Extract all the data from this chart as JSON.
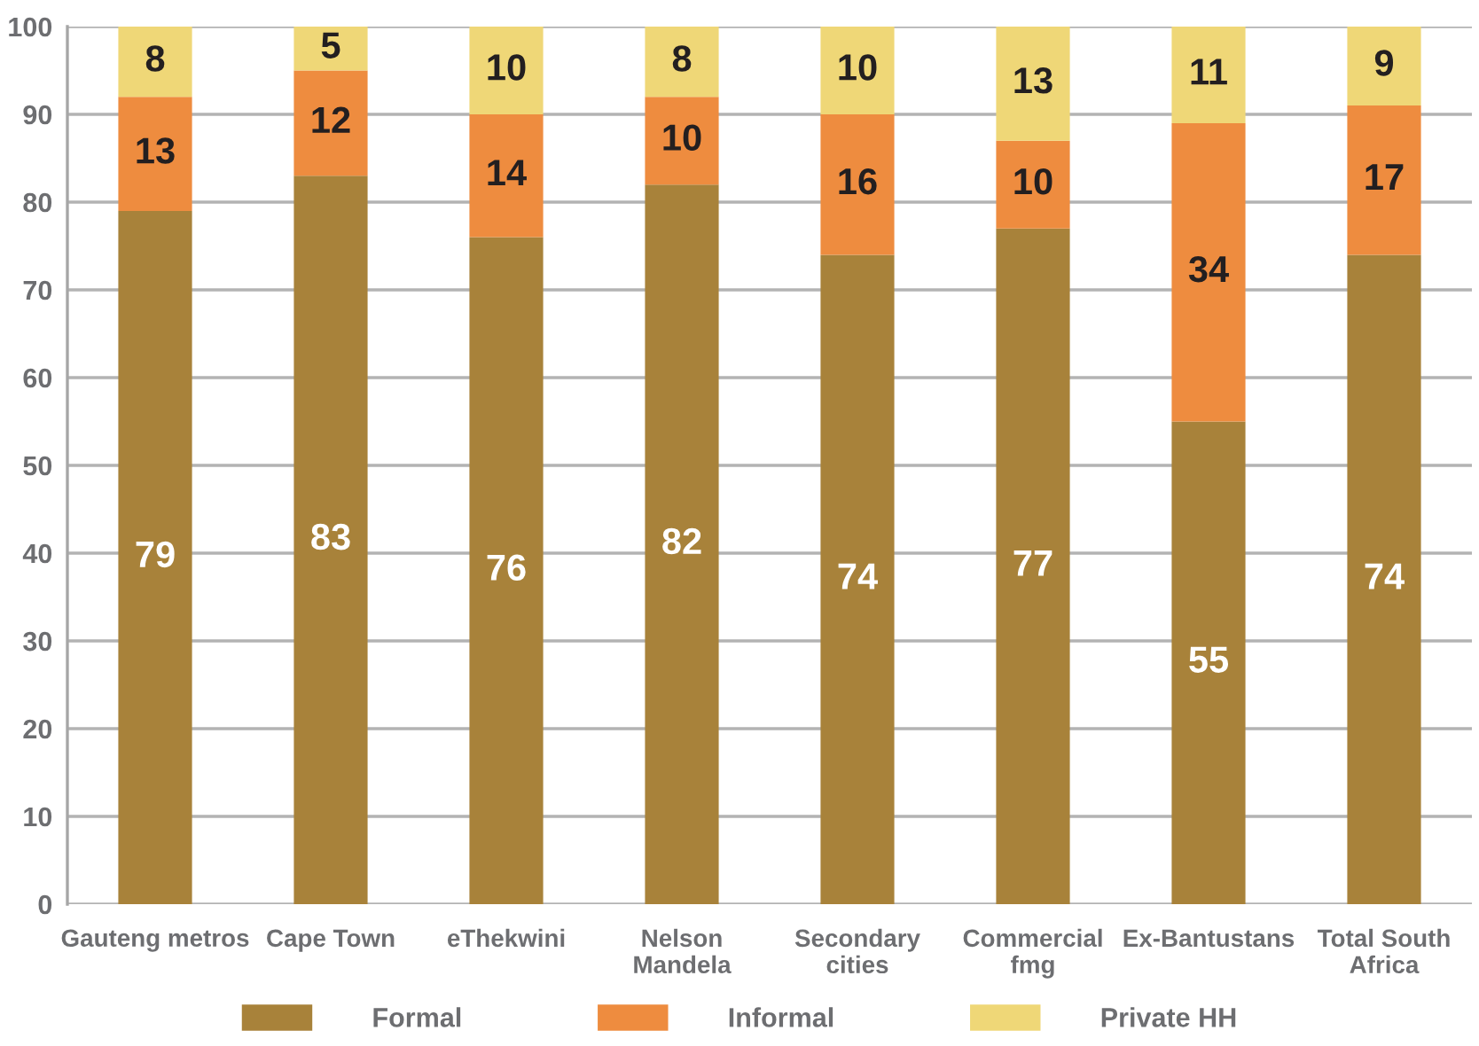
{
  "chart_data": {
    "type": "bar",
    "stacked": true,
    "categories": [
      "Gauteng metros",
      "Cape Town",
      "eThekwini",
      "Nelson\nMandela",
      "Secondary\ncities",
      "Commercial\nfmg",
      "Ex-Bantustans",
      "Total South\nAfrica"
    ],
    "series": [
      {
        "name": "Formal",
        "color": "#a8823a",
        "values": [
          79,
          83,
          76,
          82,
          74,
          77,
          55,
          74
        ]
      },
      {
        "name": "Informal",
        "color": "#ee8c3f",
        "values": [
          13,
          12,
          14,
          10,
          16,
          10,
          34,
          17
        ]
      },
      {
        "name": "Private HH",
        "color": "#efd777",
        "values": [
          8,
          5,
          10,
          8,
          10,
          13,
          11,
          9
        ]
      }
    ],
    "ylim": [
      0,
      100
    ],
    "yticks": [
      0,
      10,
      20,
      30,
      40,
      50,
      60,
      70,
      80,
      90,
      100
    ],
    "grid": "y",
    "legend": "bottom",
    "data_labels": true
  }
}
